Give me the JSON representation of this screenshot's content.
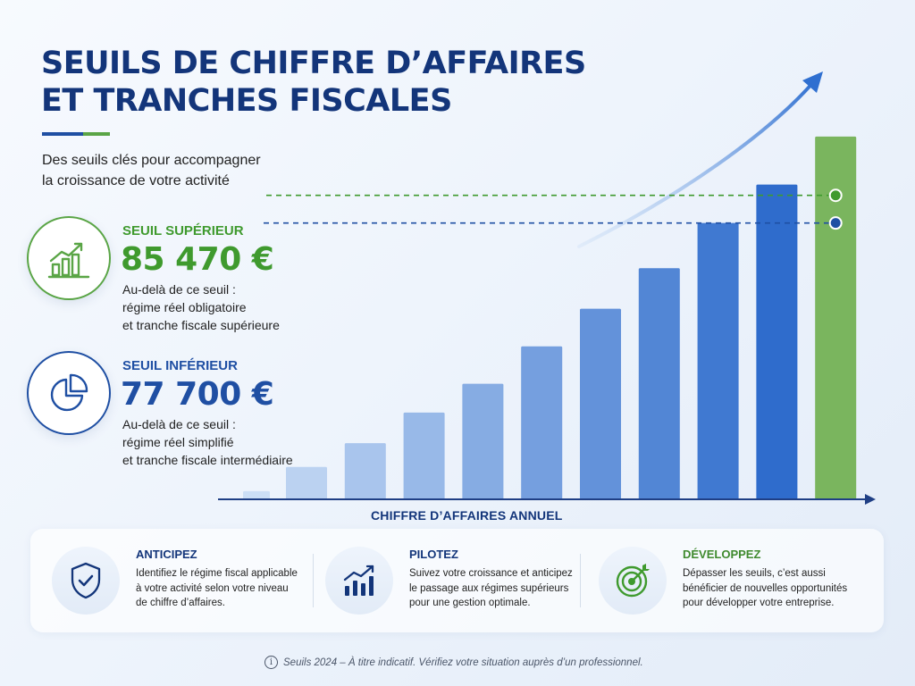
{
  "title": "SEUILS DE CHIFFRE D’AFFAIRES\nET TRANCHES FISCALES",
  "subtitle": "Des seuils clés pour accompagner\nla croissance de votre activité",
  "colors": {
    "navy": "#13357a",
    "blue": "#1f4fa3",
    "green": "#5aa546",
    "bar_green": "#7ab55e"
  },
  "upper": {
    "label": "SEUIL SUPÉRIEUR",
    "amount": "85 470 €",
    "desc": "Au-delà de ce seuil :\nrégime réel obligatoire\net tranche fiscale supérieure",
    "icon": "growth-chart-icon"
  },
  "lower": {
    "label": "SEUIL INFÉRIEUR",
    "amount": "77 700 €",
    "desc": "Au-delà de ce seuil :\nrégime réel simplifié\net tranche fiscale intermédiaire",
    "icon": "pie-chart-icon"
  },
  "chart_data": {
    "type": "bar",
    "xlabel": "CHIFFRE D’AFFAIRES ANNUEL",
    "ylabel": "",
    "ylim": [
      0,
      106000
    ],
    "values": [
      2300,
      9100,
      15800,
      24400,
      32500,
      43000,
      53600,
      65000,
      77700,
      88500,
      102000
    ],
    "highlight_last": true,
    "thresholds": [
      {
        "name": "SEUIL SUPÉRIEUR",
        "value": 85470,
        "color": "#3f9a2e"
      },
      {
        "name": "SEUIL INFÉRIEUR",
        "value": 77700,
        "color": "#1f4fa3"
      }
    ],
    "trend_arrow": true,
    "grid": false
  },
  "features": [
    {
      "title": "ANTICIPEZ",
      "desc": "Identifiez le régime fiscal applicable\nà votre activité selon votre niveau\nde chiffre d’affaires.",
      "icon": "shield-check-icon",
      "color": "#13357a"
    },
    {
      "title": "PILOTEZ",
      "desc": "Suivez votre croissance et anticipez\nle passage aux régimes supérieurs\npour une gestion optimale.",
      "icon": "rising-bars-icon",
      "color": "#13357a"
    },
    {
      "title": "DÉVELOPPEZ",
      "desc": "Dépasser les seuils, c’est aussi\nbénéficier de nouvelles opportunités\npour développer votre entreprise.",
      "icon": "target-icon",
      "color": "#3f8a2e"
    }
  ],
  "footnote": {
    "text": "Seuils 2024 – À titre indicatif. Vérifiez votre situation auprès d’un professionnel.",
    "icon": "info-icon"
  }
}
